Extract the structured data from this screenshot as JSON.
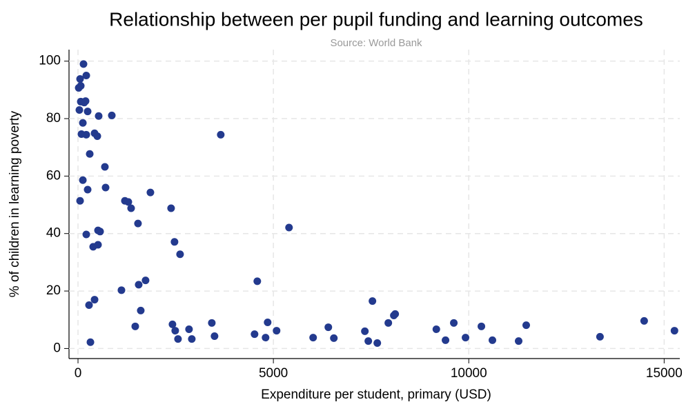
{
  "chart_data": {
    "type": "scatter",
    "title": "Relationship between per pupil funding and learning outcomes",
    "subtitle": "Source: World Bank",
    "x_label": "Expenditure per student, primary (USD)",
    "y_label": "% of children in learning poverty",
    "color": "#233a8e",
    "grid": true,
    "xlim": [
      -230,
      15400
    ],
    "xticks": [
      0,
      5000,
      10000,
      15000
    ],
    "ylim": [
      -3.5,
      104
    ],
    "yticks": [
      0,
      20,
      40,
      60,
      80,
      100
    ],
    "x": [
      141,
      212,
      53,
      71,
      18,
      71,
      194,
      159,
      35,
      247,
      529,
      865,
      124,
      88,
      212,
      424,
      494,
      3653,
      300,
      688,
      124,
      706,
      247,
      1853,
      53,
      1200,
      1288,
      1359,
      2382,
      1535,
      5400,
      512,
      565,
      212,
      2470,
      512,
      388,
      2612,
      4588,
      1729,
      1553,
      1112,
      424,
      7535,
      282,
      1606,
      8117,
      8082,
      14488,
      3424,
      4853,
      2418,
      7941,
      9617,
      11470,
      10323,
      1465,
      6406,
      9170,
      2841,
      2488,
      5082,
      15264,
      7341,
      4518,
      3494,
      13358,
      6017,
      6547,
      9917,
      2559,
      2912,
      4800,
      9405,
      7429,
      10605,
      11276,
      7659,
      318
    ],
    "values": [
      99,
      95,
      93.8,
      91.4,
      90.7,
      85.9,
      86.1,
      85.6,
      83,
      82.5,
      80.9,
      81.1,
      78.5,
      74.6,
      74.4,
      74.9,
      73.9,
      74.4,
      67.7,
      63.2,
      58.6,
      56,
      55.3,
      54.3,
      51.4,
      51.4,
      51,
      48.8,
      48.8,
      43.5,
      42.1,
      41.1,
      40.7,
      39.7,
      37.1,
      36.1,
      35.4,
      32.8,
      23.4,
      23.7,
      22.2,
      20.3,
      17,
      16.5,
      15.1,
      13.2,
      12,
      11.5,
      9.6,
      8.9,
      9.1,
      8.4,
      8.9,
      8.9,
      8.1,
      7.7,
      7.7,
      7.4,
      6.7,
      6.7,
      6.2,
      6.2,
      6.2,
      6,
      5,
      4.3,
      4.1,
      3.8,
      3.6,
      3.8,
      3.3,
      3.3,
      3.8,
      2.9,
      2.6,
      2.9,
      2.6,
      1.9,
      2.2
    ]
  }
}
